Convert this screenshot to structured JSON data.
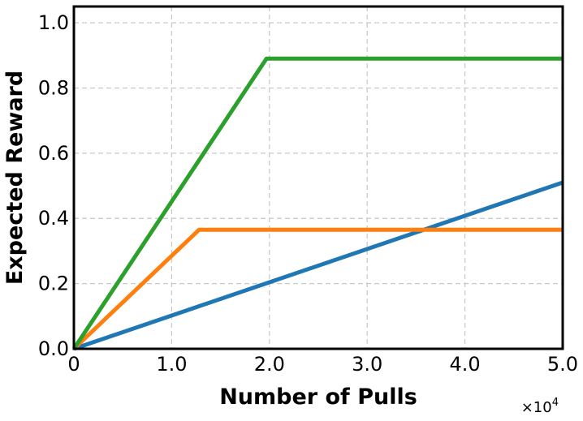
{
  "chart_data": {
    "type": "line",
    "title": "",
    "xlabel": "Number of Pulls",
    "ylabel": "Expected Reward",
    "x_multiplier": {
      "base": "×10",
      "exponent": "4"
    },
    "xlim": [
      0,
      50000
    ],
    "ylim": [
      0,
      1.05
    ],
    "xticks": [
      0,
      10000,
      20000,
      30000,
      40000,
      50000
    ],
    "xtick_labels": [
      "0",
      "1.0",
      "2.0",
      "3.0",
      "4.0",
      "5.0"
    ],
    "yticks": [
      0,
      0.2,
      0.4,
      0.6,
      0.8,
      1.0
    ],
    "ytick_labels": [
      "0.0",
      "0.2",
      "0.4",
      "0.6",
      "0.8",
      "1.0"
    ],
    "grid": true,
    "series": [
      {
        "color": "#1f77b4",
        "points": [
          [
            0,
            0
          ],
          [
            50000,
            0.51
          ]
        ]
      },
      {
        "color": "#ff7f0e",
        "points": [
          [
            0,
            0
          ],
          [
            12800,
            0.365
          ],
          [
            50000,
            0.365
          ]
        ]
      },
      {
        "color": "#2ca02c",
        "points": [
          [
            0,
            0
          ],
          [
            19700,
            0.89
          ],
          [
            50000,
            0.89
          ]
        ]
      }
    ]
  }
}
